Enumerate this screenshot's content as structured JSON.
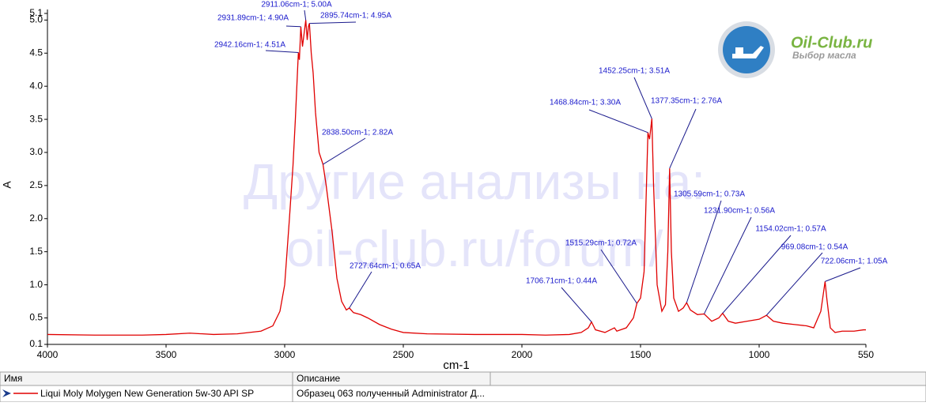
{
  "chart_data": {
    "type": "line",
    "y_label": "A",
    "x_label": "cm-1",
    "xlim": [
      4000,
      550
    ],
    "xticks": [
      4000,
      3500,
      3000,
      2500,
      2000,
      1500,
      1000,
      550
    ],
    "ylim": [
      0.1,
      5.1
    ],
    "yticks": [
      0.1,
      0.5,
      {
        "value": 1,
        "label": "1.0"
      },
      1.5,
      {
        "value": 2,
        "label": "2.0"
      },
      2.5,
      {
        "value": 3,
        "label": "3.0"
      },
      3.5,
      {
        "value": 4,
        "label": "4.0"
      },
      4.5,
      {
        "value": 5,
        "label": "5.0"
      },
      5.1
    ],
    "grid": false,
    "x": [
      4000,
      3800,
      3600,
      3500,
      3400,
      3300,
      3200,
      3100,
      3050,
      3020,
      3000,
      2980,
      2965,
      2955,
      2945,
      2942.16,
      2938,
      2931.89,
      2925,
      2918,
      2911.06,
      2905,
      2900,
      2895.74,
      2888,
      2880,
      2870,
      2855,
      2838.5,
      2825,
      2800,
      2780,
      2760,
      2740,
      2727.64,
      2710,
      2680,
      2650,
      2600,
      2550,
      2500,
      2400,
      2200,
      2000,
      1900,
      1800,
      1750,
      1720,
      1706.71,
      1690,
      1650,
      1610,
      1600,
      1560,
      1530,
      1515.29,
      1500,
      1485,
      1475,
      1468.84,
      1462,
      1452.25,
      1445,
      1430,
      1410,
      1395,
      1385,
      1377.35,
      1370,
      1360,
      1340,
      1320,
      1305.59,
      1290,
      1260,
      1231.9,
      1200,
      1170,
      1154.02,
      1130,
      1100,
      1050,
      1000,
      969.08,
      940,
      900,
      850,
      800,
      770,
      740,
      728,
      722.06,
      715,
      700,
      680,
      650,
      600,
      560,
      550
    ],
    "series": [
      {
        "name": "Liqui Moly Molygen New Generation 5w-30 API SP",
        "color": "#e00000",
        "values": [
          0.25,
          0.24,
          0.24,
          0.25,
          0.27,
          0.25,
          0.26,
          0.3,
          0.38,
          0.6,
          1.0,
          2.0,
          2.8,
          3.5,
          4.3,
          4.51,
          4.4,
          4.9,
          4.6,
          4.8,
          5.0,
          4.7,
          4.9,
          4.95,
          4.5,
          4.2,
          3.6,
          3.0,
          2.82,
          2.5,
          1.8,
          1.1,
          0.75,
          0.62,
          0.65,
          0.58,
          0.55,
          0.5,
          0.4,
          0.33,
          0.28,
          0.26,
          0.25,
          0.25,
          0.24,
          0.25,
          0.28,
          0.35,
          0.44,
          0.32,
          0.28,
          0.35,
          0.3,
          0.35,
          0.5,
          0.72,
          0.8,
          1.2,
          2.5,
          3.3,
          3.2,
          3.51,
          2.5,
          1.0,
          0.6,
          0.7,
          1.5,
          2.76,
          1.5,
          0.8,
          0.6,
          0.65,
          0.73,
          0.62,
          0.55,
          0.56,
          0.45,
          0.5,
          0.57,
          0.45,
          0.42,
          0.45,
          0.48,
          0.54,
          0.45,
          0.42,
          0.4,
          0.38,
          0.35,
          0.6,
          0.9,
          1.05,
          0.8,
          0.35,
          0.28,
          0.3,
          0.3,
          0.32,
          0.32
        ]
      }
    ],
    "annotations": [
      {
        "label": "2911.06cm-1; 5.00A",
        "x": 2911.06,
        "y": 5.0
      },
      {
        "label": "2931.89cm-1; 4.90A",
        "x": 2931.89,
        "y": 4.9
      },
      {
        "label": "2895.74cm-1; 4.95A",
        "x": 2895.74,
        "y": 4.95
      },
      {
        "label": "2942.16cm-1; 4.51A",
        "x": 2942.16,
        "y": 4.51
      },
      {
        "label": "2838.50cm-1; 2.82A",
        "x": 2838.5,
        "y": 2.82
      },
      {
        "label": "2727.64cm-1; 0.65A",
        "x": 2727.64,
        "y": 0.65
      },
      {
        "label": "1706.71cm-1; 0.44A",
        "x": 1706.71,
        "y": 0.44
      },
      {
        "label": "1515.29cm-1; 0.72A",
        "x": 1515.29,
        "y": 0.72
      },
      {
        "label": "1468.84cm-1; 3.30A",
        "x": 1468.84,
        "y": 3.3
      },
      {
        "label": "1452.25cm-1; 3.51A",
        "x": 1452.25,
        "y": 3.51
      },
      {
        "label": "1377.35cm-1; 2.76A",
        "x": 1377.35,
        "y": 2.76
      },
      {
        "label": "1305.59cm-1; 0.73A",
        "x": 1305.59,
        "y": 0.73
      },
      {
        "label": "1231.90cm-1; 0.56A",
        "x": 1231.9,
        "y": 0.56
      },
      {
        "label": "1154.02cm-1; 0.57A",
        "x": 1154.02,
        "y": 0.57
      },
      {
        "label": "969.08cm-1; 0.54A",
        "x": 969.08,
        "y": 0.54
      },
      {
        "label": "722.06cm-1; 1.05A",
        "x": 722.06,
        "y": 1.05
      }
    ],
    "watermark": [
      "Другие анализы на:",
      "oil-club.ru/forum/"
    ],
    "logo": {
      "name": "Oil-Club.ru",
      "tagline": "Выбор масла"
    }
  },
  "table": {
    "columns": [
      "Имя",
      "Описание"
    ],
    "description": "Образец 063 полученный Administrator Д..."
  }
}
